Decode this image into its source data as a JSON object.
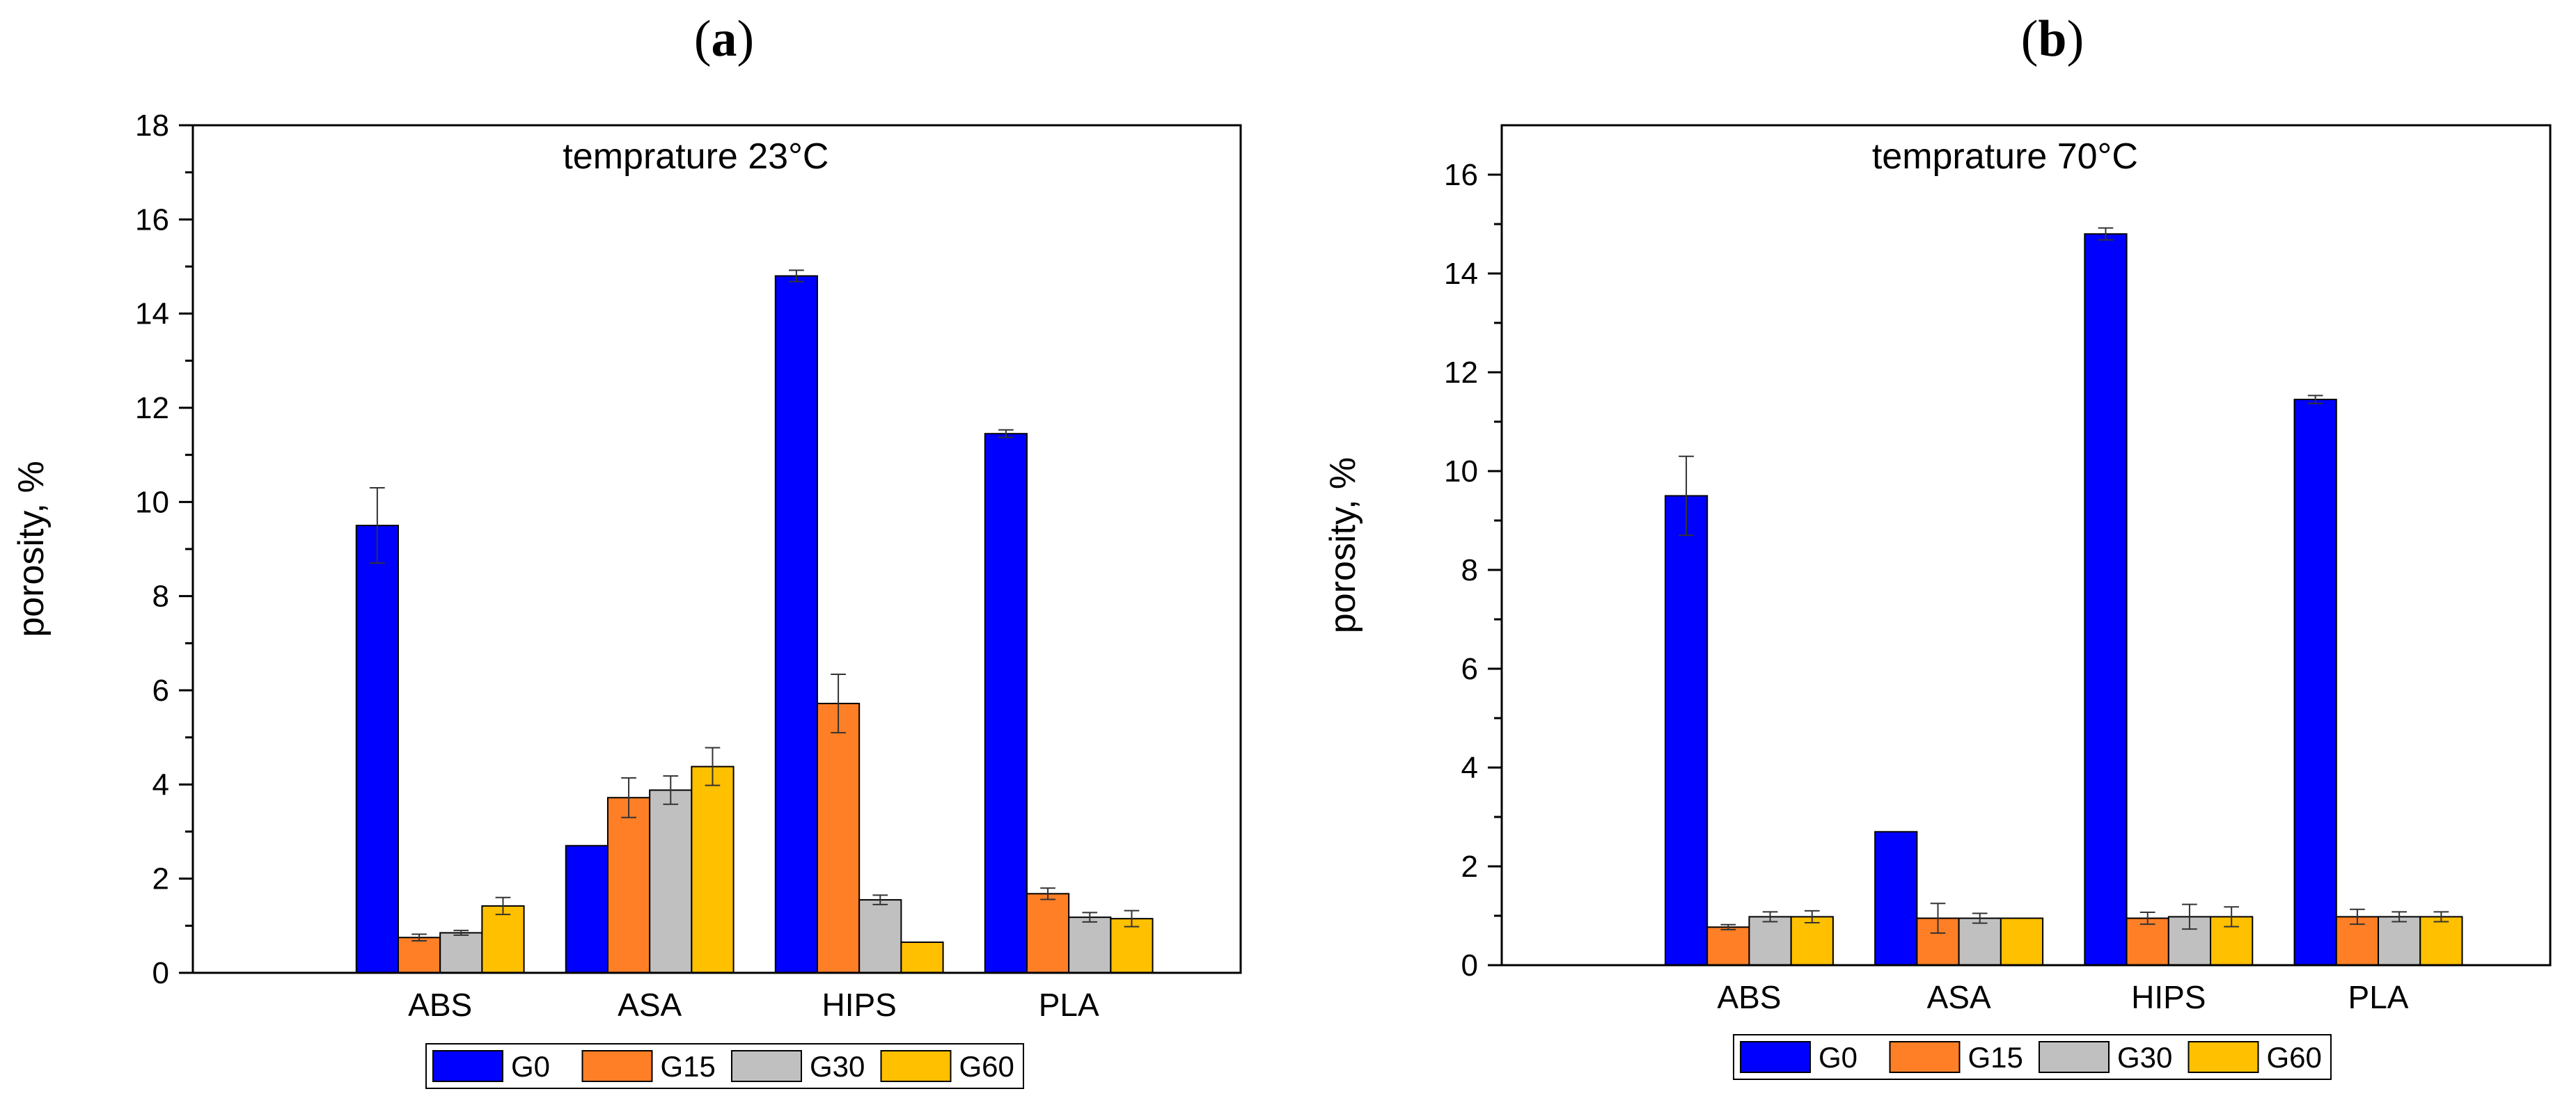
{
  "figure": {
    "series_colors": [
      "#0000FF",
      "#FF7F27",
      "#C0C0C0",
      "#FFC000"
    ]
  },
  "chart_data": [
    {
      "panel_label": "a",
      "type": "bar",
      "title": "temprature 23°C",
      "xlabel": "",
      "ylabel": "porosity, %",
      "ylim": [
        0,
        18
      ],
      "yticks": [
        0,
        2,
        4,
        6,
        8,
        10,
        12,
        14,
        16,
        18
      ],
      "categories": [
        "ABS",
        "ASA",
        "HIPS",
        "PLA"
      ],
      "series": [
        {
          "name": "G0",
          "values": [
            9.5,
            2.7,
            14.8,
            11.45
          ],
          "errors": [
            0.8,
            0.0,
            0.12,
            0.08
          ]
        },
        {
          "name": "G15",
          "values": [
            0.75,
            3.72,
            5.72,
            1.68
          ],
          "errors": [
            0.07,
            0.42,
            0.62,
            0.12
          ]
        },
        {
          "name": "G30",
          "values": [
            0.85,
            3.88,
            1.55,
            1.18
          ],
          "errors": [
            0.05,
            0.3,
            0.1,
            0.1
          ]
        },
        {
          "name": "G60",
          "values": [
            1.42,
            4.38,
            0.65,
            1.15
          ],
          "errors": [
            0.18,
            0.4,
            0.0,
            0.17
          ]
        }
      ],
      "legend_position": "bottom-center",
      "grid": false
    },
    {
      "panel_label": "b",
      "type": "bar",
      "title": "temprature 70°C",
      "xlabel": "",
      "ylabel": "porosity, %",
      "ylim": [
        0,
        17
      ],
      "yticks": [
        0,
        2,
        4,
        6,
        8,
        10,
        12,
        14,
        16
      ],
      "categories": [
        "ABS",
        "ASA",
        "HIPS",
        "PLA"
      ],
      "series": [
        {
          "name": "G0",
          "values": [
            9.5,
            2.7,
            14.8,
            11.45
          ],
          "errors": [
            0.8,
            0.0,
            0.12,
            0.08
          ]
        },
        {
          "name": "G15",
          "values": [
            0.77,
            0.95,
            0.95,
            0.98
          ],
          "errors": [
            0.05,
            0.3,
            0.12,
            0.15
          ]
        },
        {
          "name": "G30",
          "values": [
            0.98,
            0.95,
            0.98,
            0.98
          ],
          "errors": [
            0.1,
            0.1,
            0.25,
            0.1
          ]
        },
        {
          "name": "G60",
          "values": [
            0.98,
            0.95,
            0.98,
            0.98
          ],
          "errors": [
            0.12,
            0.0,
            0.2,
            0.1
          ]
        }
      ],
      "legend_position": "bottom-center",
      "grid": false
    }
  ]
}
